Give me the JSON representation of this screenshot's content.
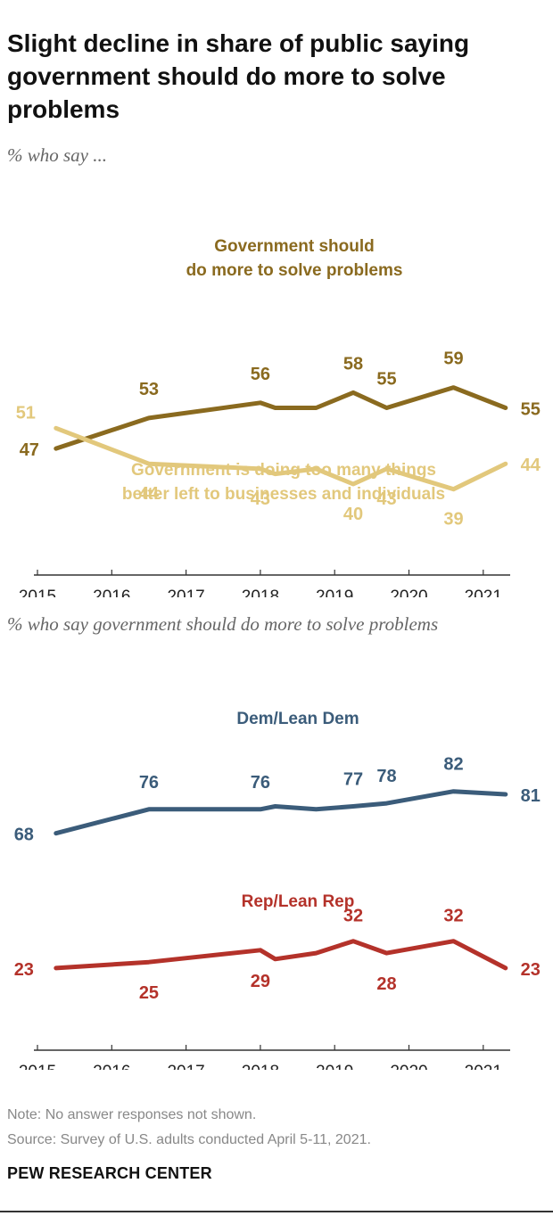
{
  "title": "Slight decline in share of public saying government should do more to solve problems",
  "subtitle_top": "% who say ...",
  "subtitle_bottom": "% who say government should do more to solve problems",
  "note": "Note: No answer responses not shown.",
  "source": "Source: Survey of U.S. adults conducted April 5-11, 2021.",
  "org": "PEW RESEARCH CENTER",
  "chart_data": [
    {
      "type": "line",
      "subtitle": "% who say ...",
      "xlim": [
        2015,
        2021.4
      ],
      "ticks": [
        "2015",
        "2016",
        "2017",
        "2018",
        "2019",
        "2020",
        "2021"
      ],
      "series": [
        {
          "name": "Government should do more to solve problems",
          "label_lines": [
            "Government should",
            "do more to solve problems"
          ],
          "color": "#8a6a1f",
          "points": [
            {
              "x": 2015.25,
              "y": 47,
              "label": "47"
            },
            {
              "x": 2016.5,
              "y": 53,
              "label": "53"
            },
            {
              "x": 2018.0,
              "y": 56,
              "label": "56"
            },
            {
              "x": 2018.2,
              "y": 55,
              "label": ""
            },
            {
              "x": 2018.75,
              "y": 55,
              "label": ""
            },
            {
              "x": 2019.25,
              "y": 58,
              "label": "58"
            },
            {
              "x": 2019.7,
              "y": 55,
              "label": "55"
            },
            {
              "x": 2020.6,
              "y": 59,
              "label": "59"
            },
            {
              "x": 2021.3,
              "y": 55,
              "label": "55"
            }
          ]
        },
        {
          "name": "Government is doing too many things better left to businesses and individuals",
          "label_lines": [
            "Government is doing too many things",
            "better left to businesses and individuals"
          ],
          "color": "#e2c87c",
          "points": [
            {
              "x": 2015.25,
              "y": 51,
              "label": "51"
            },
            {
              "x": 2016.5,
              "y": 44,
              "label": "44"
            },
            {
              "x": 2018.0,
              "y": 43,
              "label": "43"
            },
            {
              "x": 2018.2,
              "y": 42,
              "label": ""
            },
            {
              "x": 2018.75,
              "y": 43,
              "label": ""
            },
            {
              "x": 2019.25,
              "y": 40,
              "label": "40"
            },
            {
              "x": 2019.7,
              "y": 43,
              "label": "43"
            },
            {
              "x": 2020.6,
              "y": 39,
              "label": "39"
            },
            {
              "x": 2021.3,
              "y": 44,
              "label": "44"
            }
          ]
        }
      ]
    },
    {
      "type": "line",
      "subtitle": "% who say government should do more to solve problems",
      "xlim": [
        2015,
        2021.4
      ],
      "ticks": [
        "2015",
        "2016",
        "2017",
        "2018",
        "2019",
        "2020",
        "2021"
      ],
      "series": [
        {
          "name": "Dem/Lean Dem",
          "label_lines": [
            "Dem/Lean Dem"
          ],
          "color": "#3b5c7a",
          "points": [
            {
              "x": 2015.25,
              "y": 68,
              "label": "68"
            },
            {
              "x": 2016.5,
              "y": 76,
              "label": "76"
            },
            {
              "x": 2018.0,
              "y": 76,
              "label": "76"
            },
            {
              "x": 2018.2,
              "y": 77,
              "label": ""
            },
            {
              "x": 2018.75,
              "y": 76,
              "label": ""
            },
            {
              "x": 2019.25,
              "y": 77,
              "label": "77"
            },
            {
              "x": 2019.7,
              "y": 78,
              "label": "78"
            },
            {
              "x": 2020.6,
              "y": 82,
              "label": "82"
            },
            {
              "x": 2021.3,
              "y": 81,
              "label": "81"
            }
          ]
        },
        {
          "name": "Rep/Lean Rep",
          "label_lines": [
            "Rep/Lean Rep"
          ],
          "color": "#b4322a",
          "points": [
            {
              "x": 2015.25,
              "y": 23,
              "label": "23"
            },
            {
              "x": 2016.5,
              "y": 25,
              "label": "25"
            },
            {
              "x": 2018.0,
              "y": 29,
              "label": "29"
            },
            {
              "x": 2018.2,
              "y": 26,
              "label": ""
            },
            {
              "x": 2018.75,
              "y": 28,
              "label": ""
            },
            {
              "x": 2019.25,
              "y": 32,
              "label": "32"
            },
            {
              "x": 2019.7,
              "y": 28,
              "label": "28"
            },
            {
              "x": 2020.6,
              "y": 32,
              "label": "32"
            },
            {
              "x": 2021.3,
              "y": 23,
              "label": "23"
            }
          ]
        }
      ]
    }
  ]
}
